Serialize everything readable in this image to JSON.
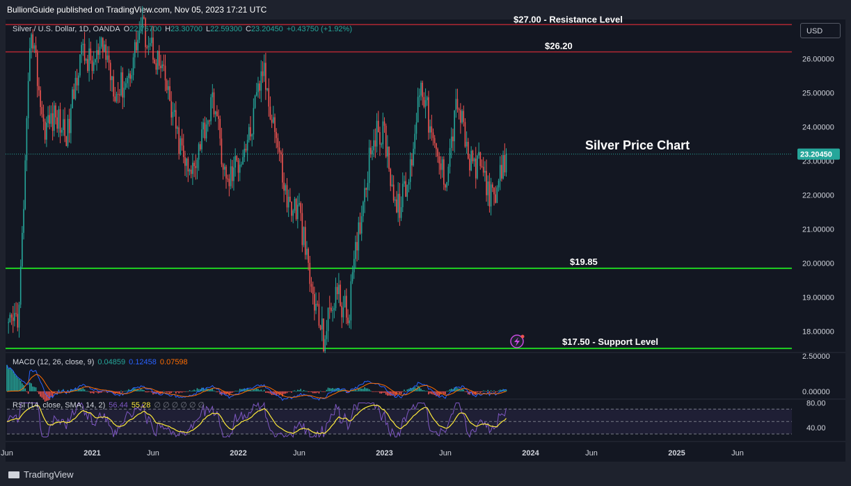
{
  "header": {
    "text": "BullionGuide published on TradingView.com, Nov 05, 2023 17:21 UTC"
  },
  "footer": {
    "logo_text": "TradingView"
  },
  "currency": "USD",
  "colors": {
    "background": "#131722",
    "up": "#26a69a",
    "down": "#ef5350",
    "resistance": "#b22833",
    "support": "#1fd322",
    "macd": "#2962ff",
    "signal": "#ff6d00",
    "rsi": "#7e57c2",
    "rsi_sma": "#ffeb3b"
  },
  "legend": {
    "main": {
      "symbol": "Silver / U.S. Dollar, 1D, OANDA",
      "o_label": "O",
      "o": "22.76700",
      "h_label": "H",
      "h": "23.30700",
      "l_label": "L",
      "l": "22.59300",
      "c_label": "C",
      "c": "23.20450",
      "change": "+0.43750 (+1.92%)"
    },
    "macd": {
      "label": "MACD (12, 26, close, 9)",
      "v1": "0.04859",
      "v2": "0.12458",
      "v3": "0.07598"
    },
    "rsi": {
      "label": "RSI (14, close, SMA, 14, 2)",
      "v1": "56.44",
      "v2": "55.28",
      "extra": "∅ ∅ ∅ ∅ ∅ ∅"
    }
  },
  "annotations": {
    "resistance_27": "$27.00 - Resistance Level",
    "level_26": "$26.20",
    "chart_title": "Silver Price Chart",
    "level_1985": "$19.85",
    "support_1750": "$17.50 - Support Level"
  },
  "price_badge": "23.20450",
  "chart_data": {
    "type": "line",
    "title": "Silver Price Chart",
    "x_ticks": [
      "Jun",
      "2021",
      "Jun",
      "2022",
      "Jun",
      "2023",
      "Jun",
      "2024",
      "Jun",
      "2025",
      "Jun"
    ],
    "y_ticks": [
      "26.00000",
      "25.00000",
      "24.00000",
      "23.00000",
      "22.00000",
      "21.00000",
      "20.00000",
      "19.00000",
      "18.00000"
    ],
    "ylim": [
      17.4,
      27.15
    ],
    "horizontal_levels": [
      27.0,
      26.2,
      19.85,
      17.5
    ],
    "series": [
      {
        "x": [
          "2020-06",
          "2020-07",
          "2020-08",
          "2020-09",
          "2020-10",
          "2020-11",
          "2020-12",
          "2021-01",
          "2021-02",
          "2021-03",
          "2021-04",
          "2021-05",
          "2021-06",
          "2021-07",
          "2021-08",
          "2021-09",
          "2021-10",
          "2021-11",
          "2021-12",
          "2022-01",
          "2022-02",
          "2022-03",
          "2022-04",
          "2022-05",
          "2022-06",
          "2022-07",
          "2022-08",
          "2022-09",
          "2022-10",
          "2022-11",
          "2022-12",
          "2023-01",
          "2023-02",
          "2023-03",
          "2023-04",
          "2023-05",
          "2023-06",
          "2023-07",
          "2023-08",
          "2023-09",
          "2023-10",
          "2023-11"
        ],
        "values": [
          17.9,
          18.6,
          27.0,
          24.0,
          24.3,
          23.8,
          26.2,
          25.8,
          26.3,
          25.0,
          25.5,
          27.0,
          26.3,
          25.3,
          23.7,
          22.5,
          23.8,
          24.8,
          22.3,
          23.0,
          23.8,
          25.7,
          24.0,
          21.8,
          21.5,
          19.2,
          17.8,
          19.2,
          18.4,
          21.3,
          23.7,
          23.8,
          21.5,
          22.4,
          25.5,
          23.4,
          22.5,
          24.8,
          22.9,
          22.8,
          21.7,
          23.2
        ]
      }
    ],
    "macd_ylim": [
      -0.5,
      2.7
    ],
    "macd_ticks": [
      "2.50000",
      "0.00000"
    ],
    "rsi_ylim": [
      20,
      85
    ],
    "rsi_ticks": [
      "80.00",
      "40.00"
    ],
    "rsi_levels": [
      70,
      50,
      30
    ]
  }
}
